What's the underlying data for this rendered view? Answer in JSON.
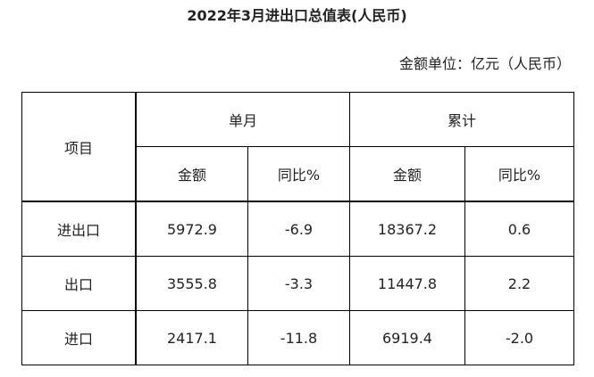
{
  "title": "2022年3月进出口总值表(人民币)",
  "unit": "金额单位：亿元（人民币）",
  "header": {
    "item": "项目",
    "monthly": "单月",
    "cumulative": "累计",
    "amount": "金额",
    "yoy": "同比%"
  },
  "rows": [
    {
      "item": "进出口",
      "m_amount": "5972.9",
      "m_yoy": "-6.9",
      "c_amount": "18367.2",
      "c_yoy": "0.6"
    },
    {
      "item": "出口",
      "m_amount": "3555.8",
      "m_yoy": "-3.3",
      "c_amount": "11447.8",
      "c_yoy": "2.2"
    },
    {
      "item": "进口",
      "m_amount": "2417.1",
      "m_yoy": "-11.8",
      "c_amount": "6919.4",
      "c_yoy": "-2.0"
    }
  ]
}
